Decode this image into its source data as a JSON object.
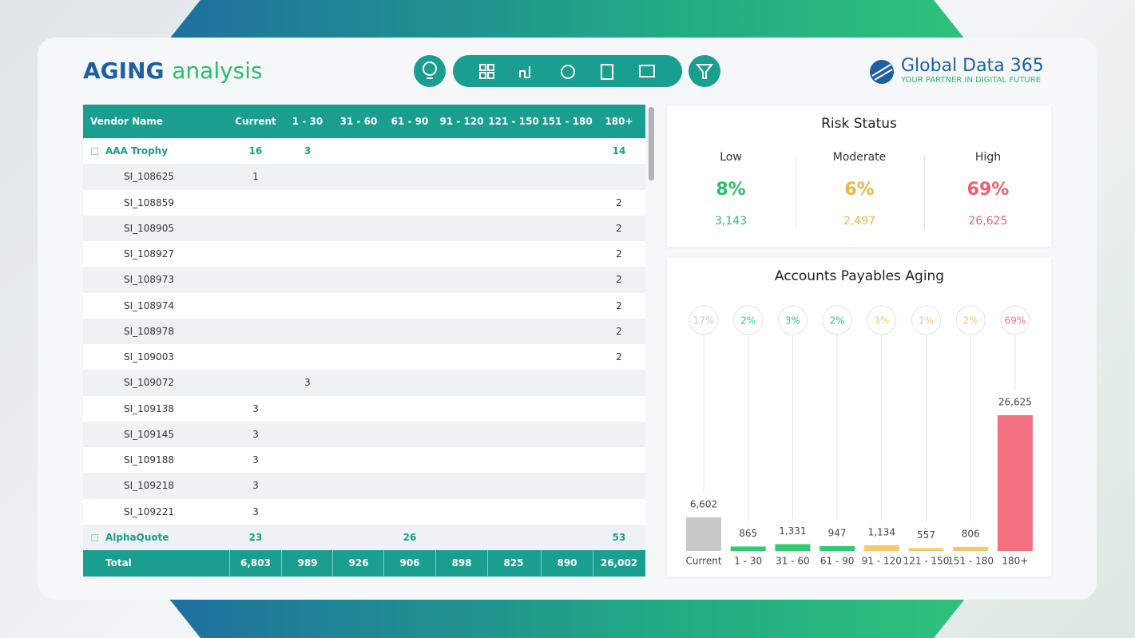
{
  "header": {
    "title_bold": "AGING",
    "title_light": "analysis",
    "logo": "Global Data 365",
    "tagline": "YOUR PARTNER IN DIGITAL FUTURE"
  },
  "table": {
    "columns": [
      "Vendor Name",
      "Current",
      "1 - 30",
      "31 - 60",
      "61 - 90",
      "91 - 120",
      "121 - 150",
      "151 - 180",
      "180+"
    ],
    "groups": [
      {
        "name": "AAA Trophy",
        "cells": [
          16,
          3,
          null,
          null,
          null,
          null,
          null,
          14
        ],
        "items": [
          {
            "name": "SI_108625",
            "cells": [
              1,
              null,
              null,
              null,
              null,
              null,
              null,
              null
            ]
          },
          {
            "name": "SI_108859",
            "cells": [
              null,
              null,
              null,
              null,
              null,
              null,
              null,
              2
            ]
          },
          {
            "name": "SI_108905",
            "cells": [
              null,
              null,
              null,
              null,
              null,
              null,
              null,
              2
            ]
          },
          {
            "name": "SI_108927",
            "cells": [
              null,
              null,
              null,
              null,
              null,
              null,
              null,
              2
            ]
          },
          {
            "name": "SI_108973",
            "cells": [
              null,
              null,
              null,
              null,
              null,
              null,
              null,
              2
            ]
          },
          {
            "name": "SI_108974",
            "cells": [
              null,
              null,
              null,
              null,
              null,
              null,
              null,
              2
            ]
          },
          {
            "name": "SI_108978",
            "cells": [
              null,
              null,
              null,
              null,
              null,
              null,
              null,
              2
            ]
          },
          {
            "name": "SI_109003",
            "cells": [
              null,
              null,
              null,
              null,
              null,
              null,
              null,
              2
            ]
          },
          {
            "name": "SI_109072",
            "cells": [
              null,
              3,
              null,
              null,
              null,
              null,
              null,
              null
            ]
          },
          {
            "name": "SI_109138",
            "cells": [
              3,
              null,
              null,
              null,
              null,
              null,
              null,
              null
            ]
          },
          {
            "name": "SI_109145",
            "cells": [
              3,
              null,
              null,
              null,
              null,
              null,
              null,
              null
            ]
          },
          {
            "name": "SI_109188",
            "cells": [
              3,
              null,
              null,
              null,
              null,
              null,
              null,
              null
            ]
          },
          {
            "name": "SI_109218",
            "cells": [
              3,
              null,
              null,
              null,
              null,
              null,
              null,
              null
            ]
          },
          {
            "name": "SI_109221",
            "cells": [
              3,
              null,
              null,
              null,
              null,
              null,
              null,
              null
            ]
          }
        ]
      },
      {
        "name": "AlphaQuote",
        "cells": [
          23,
          null,
          null,
          26,
          null,
          null,
          null,
          53
        ],
        "items": []
      }
    ],
    "total": {
      "label": "Total",
      "cells": [
        "6,803",
        989,
        926,
        906,
        898,
        825,
        890,
        "26,002"
      ]
    }
  },
  "risk_status": {
    "title": "Risk Status",
    "items": [
      {
        "label": "Low",
        "percent": "8%",
        "count": "3,143",
        "color": "#2ebd6b"
      },
      {
        "label": "Moderate",
        "percent": "6%",
        "count": "2,497",
        "color": "#e8b84a"
      },
      {
        "label": "High",
        "percent": "69%",
        "count": "26,625",
        "color": "#e8606f"
      }
    ]
  },
  "chart_data": {
    "type": "bar",
    "title": "Accounts Payables Aging",
    "categories": [
      "Current",
      "1 - 30",
      "31 - 60",
      "61 - 90",
      "91 - 120",
      "121 - 150",
      "151 - 180",
      "180+"
    ],
    "values": [
      6602,
      865,
      1331,
      947,
      1134,
      557,
      806,
      26625
    ],
    "value_labels": [
      "6,602",
      "865",
      "1,331",
      "947",
      "1,134",
      "557",
      "806",
      "26,625"
    ],
    "share_labels": [
      "17%",
      "2%",
      "3%",
      "2%",
      "3%",
      "1%",
      "2%",
      "69%"
    ],
    "colors": [
      "#c9c9c9",
      "#2ecc71",
      "#2ecc71",
      "#2ecc71",
      "#f5c96a",
      "#f5c96a",
      "#f5c96a",
      "#f2707f"
    ]
  }
}
